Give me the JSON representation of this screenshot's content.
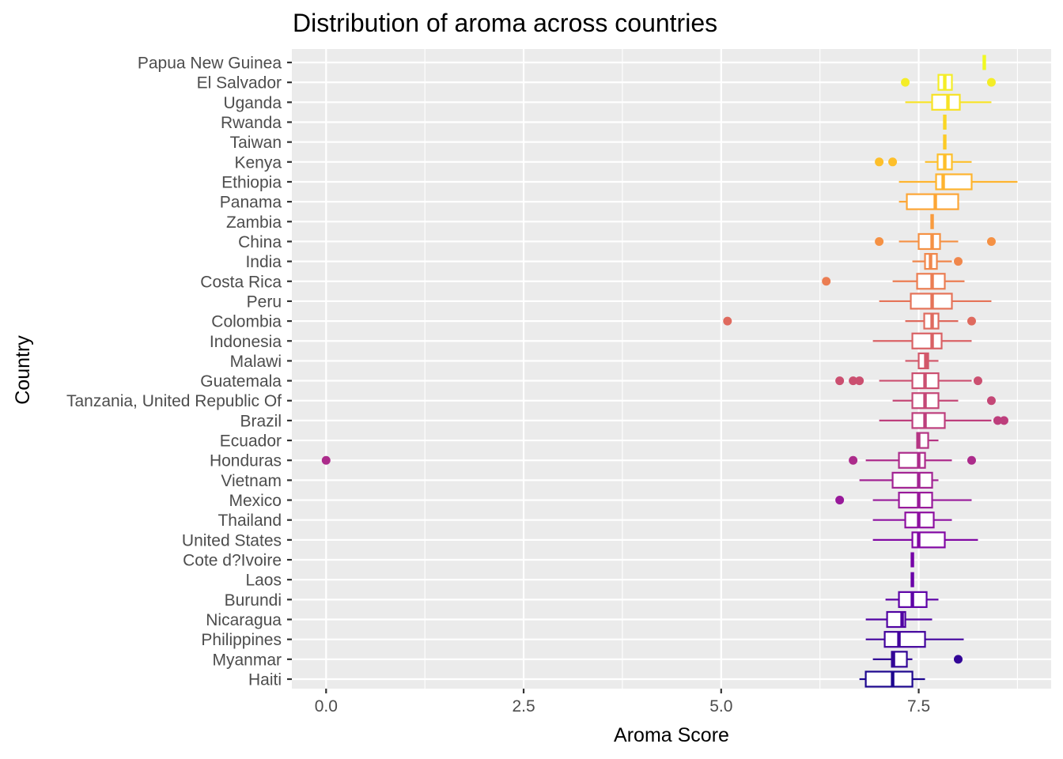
{
  "chart_data": {
    "type": "boxplot",
    "orientation": "horizontal",
    "title": "Distribution of aroma across countries",
    "xlabel": "Aroma Score",
    "ylabel": "Country",
    "xlim": [
      -0.43,
      9.17
    ],
    "x_ticks": [
      0.0,
      2.5,
      5.0,
      7.5
    ],
    "x_tick_labels": [
      "0.0",
      "2.5",
      "5.0",
      "7.5"
    ],
    "grid": true,
    "legend": "none",
    "palette": "plasma",
    "panel_background": "#ebebeb",
    "categories": [
      {
        "name": "Papua New Guinea",
        "color": "#f0f921",
        "whisker_low": 8.33,
        "q1": 8.33,
        "median": 8.33,
        "q3": 8.33,
        "whisker_high": 8.33,
        "outliers": []
      },
      {
        "name": "El Salvador",
        "color": "#f4ed27",
        "whisker_low": 7.75,
        "q1": 7.75,
        "median": 7.83,
        "q3": 7.92,
        "whisker_high": 7.92,
        "outliers": [
          7.33,
          8.42
        ]
      },
      {
        "name": "Uganda",
        "color": "#f7e225",
        "whisker_low": 7.33,
        "q1": 7.67,
        "median": 7.87,
        "q3": 8.02,
        "whisker_high": 8.42,
        "outliers": []
      },
      {
        "name": "Rwanda",
        "color": "#fad624",
        "whisker_low": 7.83,
        "q1": 7.83,
        "median": 7.83,
        "q3": 7.83,
        "whisker_high": 7.83,
        "outliers": []
      },
      {
        "name": "Taiwan",
        "color": "#fcca25",
        "whisker_low": 7.83,
        "q1": 7.83,
        "median": 7.83,
        "q3": 7.83,
        "whisker_high": 7.83,
        "outliers": []
      },
      {
        "name": "Kenya",
        "color": "#fdbf2a",
        "whisker_low": 7.58,
        "q1": 7.74,
        "median": 7.83,
        "q3": 7.92,
        "whisker_high": 8.17,
        "outliers": [
          7.0,
          7.17
        ]
      },
      {
        "name": "Ethiopia",
        "color": "#feb42f",
        "whisker_low": 7.25,
        "q1": 7.72,
        "median": 7.81,
        "q3": 8.17,
        "whisker_high": 8.75,
        "outliers": []
      },
      {
        "name": "Panama",
        "color": "#fca636",
        "whisker_low": 7.25,
        "q1": 7.35,
        "median": 7.71,
        "q3": 8.0,
        "whisker_high": 8.0,
        "outliers": []
      },
      {
        "name": "Zambia",
        "color": "#f99b3e",
        "whisker_low": 7.67,
        "q1": 7.67,
        "median": 7.67,
        "q3": 7.67,
        "whisker_high": 7.67,
        "outliers": []
      },
      {
        "name": "China",
        "color": "#f59144",
        "whisker_low": 7.25,
        "q1": 7.5,
        "median": 7.67,
        "q3": 7.77,
        "whisker_high": 8.0,
        "outliers": [
          7.0,
          8.42
        ]
      },
      {
        "name": "India",
        "color": "#f0874c",
        "whisker_low": 7.42,
        "q1": 7.58,
        "median": 7.65,
        "q3": 7.73,
        "whisker_high": 7.92,
        "outliers": [
          8.0
        ]
      },
      {
        "name": "Costa Rica",
        "color": "#eb7d52",
        "whisker_low": 7.17,
        "q1": 7.48,
        "median": 7.67,
        "q3": 7.83,
        "whisker_high": 8.08,
        "outliers": [
          6.33
        ]
      },
      {
        "name": "Peru",
        "color": "#e57358",
        "whisker_low": 7.0,
        "q1": 7.4,
        "median": 7.67,
        "q3": 7.92,
        "whisker_high": 8.42,
        "outliers": []
      },
      {
        "name": "Colombia",
        "color": "#df6a5e",
        "whisker_low": 7.33,
        "q1": 7.57,
        "median": 7.67,
        "q3": 7.75,
        "whisker_high": 8.0,
        "outliers": [
          5.08,
          8.17
        ]
      },
      {
        "name": "Indonesia",
        "color": "#d96164",
        "whisker_low": 6.92,
        "q1": 7.42,
        "median": 7.67,
        "q3": 7.79,
        "whisker_high": 8.17,
        "outliers": []
      },
      {
        "name": "Malawi",
        "color": "#d2586a",
        "whisker_low": 7.33,
        "q1": 7.5,
        "median": 7.59,
        "q3": 7.62,
        "whisker_high": 7.75,
        "outliers": []
      },
      {
        "name": "Guatemala",
        "color": "#cb4f70",
        "whisker_low": 7.0,
        "q1": 7.42,
        "median": 7.58,
        "q3": 7.75,
        "whisker_high": 8.17,
        "outliers": [
          6.5,
          6.67,
          6.75,
          8.25
        ]
      },
      {
        "name": "Tanzania, United Republic Of",
        "color": "#c44776",
        "whisker_low": 7.17,
        "q1": 7.42,
        "median": 7.58,
        "q3": 7.75,
        "whisker_high": 8.0,
        "outliers": [
          8.42
        ]
      },
      {
        "name": "Brazil",
        "color": "#bd3e7c",
        "whisker_low": 7.0,
        "q1": 7.42,
        "median": 7.58,
        "q3": 7.83,
        "whisker_high": 8.42,
        "outliers": [
          8.5,
          8.58
        ]
      },
      {
        "name": "Ecuador",
        "color": "#b53583",
        "whisker_low": 7.48,
        "q1": 7.48,
        "median": 7.5,
        "q3": 7.62,
        "whisker_high": 7.75,
        "outliers": []
      },
      {
        "name": "Honduras",
        "color": "#ac2b8b",
        "whisker_low": 6.83,
        "q1": 7.25,
        "median": 7.5,
        "q3": 7.58,
        "whisker_high": 7.92,
        "outliers": [
          0.0,
          6.67,
          8.17
        ]
      },
      {
        "name": "Vietnam",
        "color": "#a22393",
        "whisker_low": 6.75,
        "q1": 7.17,
        "median": 7.5,
        "q3": 7.67,
        "whisker_high": 7.75,
        "outliers": []
      },
      {
        "name": "Mexico",
        "color": "#98199a",
        "whisker_low": 6.92,
        "q1": 7.25,
        "median": 7.5,
        "q3": 7.67,
        "whisker_high": 8.17,
        "outliers": [
          6.5
        ]
      },
      {
        "name": "Thailand",
        "color": "#8d10a0",
        "whisker_low": 6.92,
        "q1": 7.33,
        "median": 7.5,
        "q3": 7.69,
        "whisker_high": 7.92,
        "outliers": []
      },
      {
        "name": "United States",
        "color": "#8208a4",
        "whisker_low": 6.92,
        "q1": 7.42,
        "median": 7.5,
        "q3": 7.83,
        "whisker_high": 8.25,
        "outliers": []
      },
      {
        "name": "Cote d?Ivoire",
        "color": "#7603a7",
        "whisker_low": 7.42,
        "q1": 7.42,
        "median": 7.42,
        "q3": 7.42,
        "whisker_high": 7.42,
        "outliers": []
      },
      {
        "name": "Laos",
        "color": "#6a00a8",
        "whisker_low": 7.42,
        "q1": 7.42,
        "median": 7.42,
        "q3": 7.42,
        "whisker_high": 7.42,
        "outliers": []
      },
      {
        "name": "Burundi",
        "color": "#5d01a6",
        "whisker_low": 7.08,
        "q1": 7.25,
        "median": 7.42,
        "q3": 7.6,
        "whisker_high": 7.75,
        "outliers": []
      },
      {
        "name": "Nicaragua",
        "color": "#5002a2",
        "whisker_low": 6.83,
        "q1": 7.1,
        "median": 7.29,
        "q3": 7.33,
        "whisker_high": 7.67,
        "outliers": []
      },
      {
        "name": "Philippines",
        "color": "#42039d",
        "whisker_low": 6.83,
        "q1": 7.07,
        "median": 7.25,
        "q3": 7.58,
        "whisker_high": 8.07,
        "outliers": []
      },
      {
        "name": "Myanmar",
        "color": "#320597",
        "whisker_low": 6.92,
        "q1": 7.16,
        "median": 7.18,
        "q3": 7.35,
        "whisker_high": 7.42,
        "outliers": [
          8.0
        ]
      },
      {
        "name": "Haiti",
        "color": "#1d068f",
        "whisker_low": 6.75,
        "q1": 6.83,
        "median": 7.17,
        "q3": 7.42,
        "whisker_high": 7.58,
        "outliers": []
      }
    ]
  }
}
